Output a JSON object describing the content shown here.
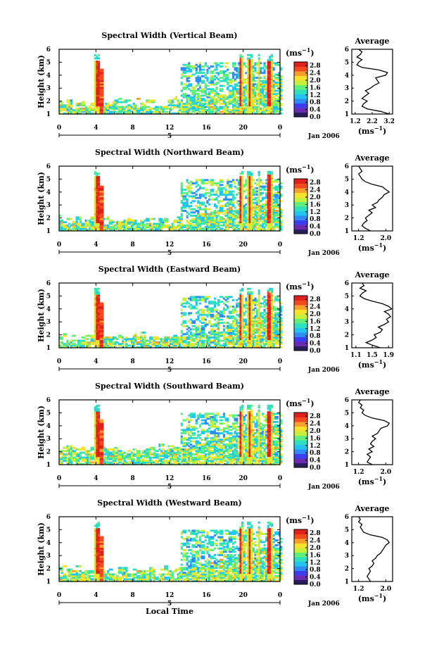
{
  "figure": {
    "xlabel": "Local Time",
    "day_label": "5",
    "date_label": "Jan 2006",
    "unit_label": "(ms",
    "unit_exp": "−1",
    "unit_close": ")",
    "avg_title": "Average"
  },
  "colorscale": [
    "#2a1e5c",
    "#6a2bb0",
    "#3a3ef0",
    "#2f8cf5",
    "#21c6f0",
    "#2fe0c0",
    "#5ef07a",
    "#c8f03a",
    "#f8e12a",
    "#f8a12a",
    "#f24a1e",
    "#e0201a"
  ],
  "chart_data": [
    {
      "type": "heatmap",
      "title": "Spectral Width (Vertical Beam)",
      "ylabel": "Height (km)",
      "xlabel": "",
      "x_range": [
        0,
        24
      ],
      "x_ticks": [
        "0",
        "4",
        "8",
        "12",
        "16",
        "20",
        "0"
      ],
      "y_range": [
        1,
        6
      ],
      "y_ticks": [
        "1",
        "2",
        "3",
        "4",
        "5",
        "6"
      ],
      "colorbar": {
        "ticks": [
          "0.0",
          "0.4",
          "0.8",
          "1.2",
          "1.6",
          "2.0",
          "2.4",
          "2.8"
        ],
        "range": [
          0.0,
          3.0
        ]
      },
      "average_profile": {
        "x_ticks": [
          "1.2",
          "2.2",
          "3.2"
        ],
        "x_range": [
          1.0,
          3.4
        ],
        "xlabel": "(ms",
        "height": [
          1.0,
          1.2,
          1.4,
          1.6,
          1.8,
          2.0,
          2.2,
          2.4,
          2.6,
          2.8,
          3.0,
          3.2,
          3.4,
          3.6,
          3.8,
          4.0,
          4.2,
          4.4,
          4.6,
          4.8,
          5.0,
          5.2,
          5.4,
          5.6,
          5.8,
          6.0
        ],
        "value": [
          3.2,
          2.7,
          1.9,
          1.6,
          1.7,
          1.9,
          1.6,
          1.8,
          2.0,
          1.8,
          2.1,
          2.3,
          2.6,
          2.5,
          2.4,
          3.0,
          3.1,
          2.6,
          1.6,
          1.3,
          1.4,
          1.6,
          1.3,
          1.5,
          1.6,
          1.4
        ]
      }
    },
    {
      "type": "heatmap",
      "title": "Spectral Width (Northward Beam)",
      "ylabel": "Height (km)",
      "xlabel": "",
      "x_range": [
        0,
        24
      ],
      "x_ticks": [
        "0",
        "4",
        "8",
        "12",
        "16",
        "20",
        "0"
      ],
      "y_range": [
        1,
        6
      ],
      "y_ticks": [
        "1",
        "2",
        "3",
        "4",
        "5",
        "6"
      ],
      "colorbar": {
        "ticks": [
          "0.0",
          "0.4",
          "0.8",
          "1.2",
          "1.6",
          "2.0",
          "2.4",
          "2.8"
        ],
        "range": [
          0.0,
          3.0
        ]
      },
      "average_profile": {
        "x_ticks": [
          "1.2",
          "2.0"
        ],
        "x_range": [
          1.0,
          2.2
        ],
        "xlabel": "(ms",
        "height": [
          1.0,
          1.2,
          1.4,
          1.6,
          1.8,
          2.0,
          2.2,
          2.4,
          2.6,
          2.8,
          3.0,
          3.2,
          3.4,
          3.6,
          3.8,
          4.0,
          4.2,
          4.4,
          4.6,
          4.8,
          5.0,
          5.2,
          5.4,
          5.6,
          5.8,
          6.0
        ],
        "value": [
          1.55,
          1.4,
          1.3,
          1.35,
          1.45,
          1.4,
          1.5,
          1.6,
          1.5,
          1.7,
          1.6,
          1.75,
          1.8,
          1.9,
          1.95,
          2.1,
          2.0,
          1.9,
          1.6,
          1.4,
          1.3,
          1.25,
          1.2,
          1.3,
          1.25,
          1.2
        ]
      }
    },
    {
      "type": "heatmap",
      "title": "Spectral Width (Eastward Beam)",
      "ylabel": "Height (km)",
      "xlabel": "",
      "x_range": [
        0,
        24
      ],
      "x_ticks": [
        "0",
        "4",
        "8",
        "12",
        "16",
        "20",
        "0"
      ],
      "y_range": [
        1,
        6
      ],
      "y_ticks": [
        "1",
        "2",
        "3",
        "4",
        "5",
        "6"
      ],
      "colorbar": {
        "ticks": [
          "0.0",
          "0.4",
          "0.8",
          "1.2",
          "1.6",
          "2.0",
          "2.4",
          "2.8"
        ],
        "range": [
          0.0,
          3.0
        ]
      },
      "average_profile": {
        "x_ticks": [
          "1.1",
          "1.5",
          "1.9"
        ],
        "x_range": [
          1.0,
          2.0
        ],
        "xlabel": "(ms",
        "height": [
          1.0,
          1.2,
          1.4,
          1.6,
          1.8,
          2.0,
          2.2,
          2.4,
          2.6,
          2.8,
          3.0,
          3.2,
          3.4,
          3.6,
          3.8,
          4.0,
          4.2,
          4.4,
          4.6,
          4.8,
          5.0,
          5.2,
          5.4,
          5.6,
          5.8,
          6.0
        ],
        "value": [
          1.7,
          1.5,
          1.35,
          1.5,
          1.6,
          1.55,
          1.7,
          1.75,
          1.65,
          1.8,
          1.9,
          1.85,
          1.95,
          1.9,
          1.8,
          1.98,
          1.9,
          1.75,
          1.5,
          1.3,
          1.2,
          1.25,
          1.35,
          1.2,
          1.3,
          1.25
        ]
      }
    },
    {
      "type": "heatmap",
      "title": "Spectral Width (Southward Beam)",
      "ylabel": "Height (km)",
      "xlabel": "",
      "x_range": [
        0,
        24
      ],
      "x_ticks": [
        "0",
        "4",
        "8",
        "12",
        "16",
        "20",
        "0"
      ],
      "y_range": [
        1,
        6
      ],
      "y_ticks": [
        "1",
        "2",
        "3",
        "4",
        "5",
        "6"
      ],
      "colorbar": {
        "ticks": [
          "0.0",
          "0.4",
          "0.8",
          "1.2",
          "1.6",
          "2.0",
          "2.4",
          "2.8"
        ],
        "range": [
          0.0,
          3.0
        ]
      },
      "average_profile": {
        "x_ticks": [
          "1.2",
          "2.0"
        ],
        "x_range": [
          1.0,
          2.2
        ],
        "xlabel": "(ms",
        "height": [
          1.0,
          1.2,
          1.4,
          1.6,
          1.8,
          2.0,
          2.2,
          2.4,
          2.6,
          2.8,
          3.0,
          3.2,
          3.4,
          3.6,
          3.8,
          4.0,
          4.2,
          4.4,
          4.6,
          4.8,
          5.0,
          5.2,
          5.4,
          5.6,
          5.8,
          6.0
        ],
        "value": [
          1.6,
          1.45,
          1.5,
          1.55,
          1.45,
          1.6,
          1.5,
          1.65,
          1.55,
          1.6,
          1.7,
          1.6,
          1.75,
          1.8,
          1.85,
          2.05,
          2.1,
          1.95,
          1.6,
          1.4,
          1.3,
          1.35,
          1.25,
          1.3,
          1.2,
          1.25
        ]
      }
    },
    {
      "type": "heatmap",
      "title": "Spectral Width (Westward Beam)",
      "ylabel": "Height (km)",
      "xlabel": "Local Time",
      "x_range": [
        0,
        24
      ],
      "x_ticks": [
        "0",
        "4",
        "8",
        "12",
        "16",
        "20",
        "0"
      ],
      "y_range": [
        1,
        6
      ],
      "y_ticks": [
        "1",
        "2",
        "3",
        "4",
        "5",
        "6"
      ],
      "colorbar": {
        "ticks": [
          "0.0",
          "0.4",
          "0.8",
          "1.2",
          "1.6",
          "2.0",
          "2.4",
          "2.8"
        ],
        "range": [
          0.0,
          3.0
        ]
      },
      "average_profile": {
        "x_ticks": [
          "1.2",
          "2.0"
        ],
        "x_range": [
          1.0,
          2.2
        ],
        "xlabel": "(ms",
        "height": [
          1.0,
          1.2,
          1.4,
          1.6,
          1.8,
          2.0,
          2.2,
          2.4,
          2.6,
          2.8,
          3.0,
          3.2,
          3.4,
          3.6,
          3.8,
          4.0,
          4.2,
          4.4,
          4.6,
          4.8,
          5.0,
          5.2,
          5.4,
          5.6,
          5.8,
          6.0
        ],
        "value": [
          1.55,
          1.5,
          1.45,
          1.5,
          1.55,
          1.5,
          1.6,
          1.65,
          1.6,
          1.7,
          1.75,
          1.85,
          1.9,
          1.95,
          2.0,
          2.1,
          2.05,
          1.9,
          1.55,
          1.35,
          1.3,
          1.25,
          1.3,
          1.2,
          1.25,
          1.2
        ]
      }
    }
  ]
}
